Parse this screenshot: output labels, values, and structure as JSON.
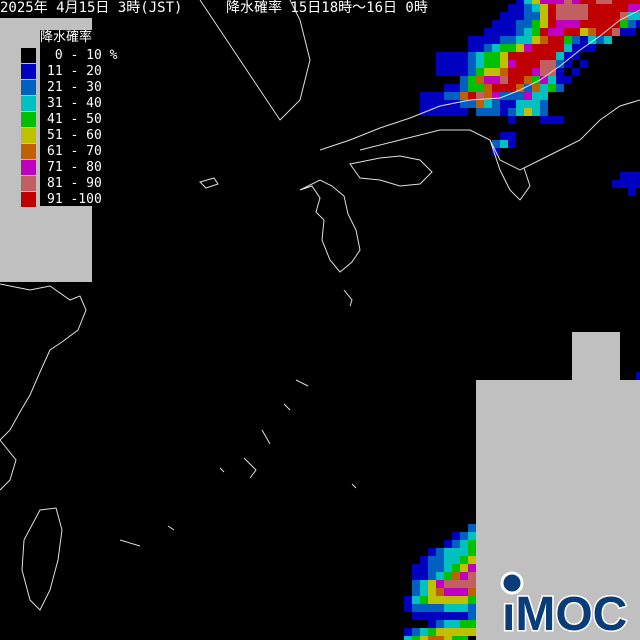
{
  "header": {
    "issued": "2025年 4月15日 3時(JST)",
    "product": "降水確率 15日18時～16日 0時"
  },
  "legend": {
    "title": "降水確率",
    "items": [
      {
        "label": " 0 - 10 %",
        "color": "#000000"
      },
      {
        "label": "11 - 20",
        "color": "#0000c0"
      },
      {
        "label": "21 - 30",
        "color": "#0060c0"
      },
      {
        "label": "31 - 40",
        "color": "#00c0c0"
      },
      {
        "label": "41 - 50",
        "color": "#00c000"
      },
      {
        "label": "51 - 60",
        "color": "#c0c000"
      },
      {
        "label": "61 - 70",
        "color": "#c06000"
      },
      {
        "label": "71 - 80",
        "color": "#c000c0"
      },
      {
        "label": "81 - 90",
        "color": "#c06060"
      },
      {
        "label": "91 -100",
        "color": "#c00000"
      }
    ]
  },
  "logo": {
    "text": "iMOC",
    "color": "#0a3c78"
  },
  "colors": {
    "background": "#000000",
    "no_data": "#c0c0c0",
    "coastline": "#e0e0e0"
  }
}
